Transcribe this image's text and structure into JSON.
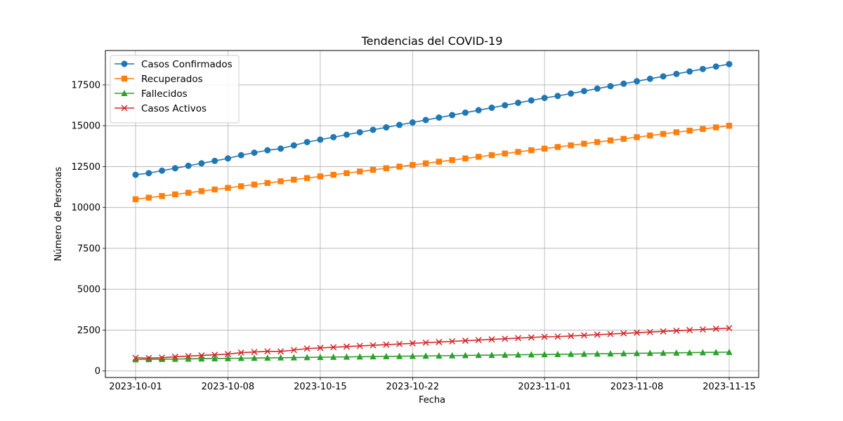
{
  "chart_data": {
    "type": "line",
    "title": "Tendencias del COVID-19",
    "xlabel": "Fecha",
    "ylabel": "Número de Personas",
    "x_start": "2023-10-01",
    "x_end": "2023-11-15",
    "x_ticks": [
      "2023-10-01",
      "2023-10-08",
      "2023-10-15",
      "2023-10-22",
      "2023-11-01",
      "2023-11-08",
      "2023-11-15"
    ],
    "ylim": [
      -400,
      19600
    ],
    "y_ticks": [
      0,
      2500,
      5000,
      7500,
      10000,
      12500,
      15000,
      17500
    ],
    "grid": true,
    "legend_position": "top-left",
    "series": [
      {
        "name": "Casos Confirmados",
        "color": "#1f77b4",
        "marker": "circle",
        "values": [
          12000,
          12100,
          12250,
          12400,
          12550,
          12700,
          12850,
          13000,
          13200,
          13350,
          13500,
          13600,
          13800,
          14000,
          14150,
          14300,
          14450,
          14600,
          14750,
          14900,
          15050,
          15200,
          15350,
          15500,
          15650,
          15800,
          15950,
          16100,
          16250,
          16400,
          16550,
          16700,
          16820,
          16970,
          17120,
          17270,
          17420,
          17570,
          17720,
          17870,
          18020,
          18170,
          18320,
          18470,
          18620,
          18770
        ]
      },
      {
        "name": "Recuperados",
        "color": "#ff7f0e",
        "marker": "square",
        "values": [
          10500,
          10600,
          10700,
          10800,
          10900,
          11000,
          11100,
          11200,
          11300,
          11400,
          11500,
          11600,
          11700,
          11800,
          11900,
          12000,
          12100,
          12200,
          12300,
          12400,
          12500,
          12600,
          12700,
          12800,
          12900,
          13000,
          13100,
          13200,
          13300,
          13400,
          13500,
          13600,
          13700,
          13800,
          13900,
          14000,
          14100,
          14200,
          14300,
          14400,
          14500,
          14600,
          14700,
          14800,
          14900,
          15000
        ]
      },
      {
        "name": "Fallecidos",
        "color": "#2ca02c",
        "marker": "triangle",
        "values": [
          700,
          710,
          720,
          730,
          740,
          750,
          760,
          770,
          780,
          790,
          800,
          810,
          820,
          830,
          840,
          850,
          860,
          870,
          880,
          890,
          900,
          910,
          920,
          930,
          940,
          950,
          960,
          970,
          980,
          990,
          1000,
          1010,
          1020,
          1030,
          1040,
          1050,
          1060,
          1070,
          1080,
          1090,
          1100,
          1110,
          1120,
          1130,
          1140,
          1150
        ]
      },
      {
        "name": "Casos Activos",
        "color": "#d62728",
        "marker": "x",
        "values": [
          800,
          790,
          810,
          870,
          910,
          950,
          990,
          1030,
          1120,
          1160,
          1200,
          1190,
          1280,
          1370,
          1410,
          1450,
          1490,
          1530,
          1570,
          1610,
          1650,
          1690,
          1730,
          1770,
          1810,
          1850,
          1890,
          1930,
          1970,
          2010,
          2050,
          2090,
          2100,
          2140,
          2180,
          2220,
          2260,
          2300,
          2340,
          2380,
          2420,
          2460,
          2500,
          2540,
          2580,
          2620
        ]
      }
    ]
  }
}
